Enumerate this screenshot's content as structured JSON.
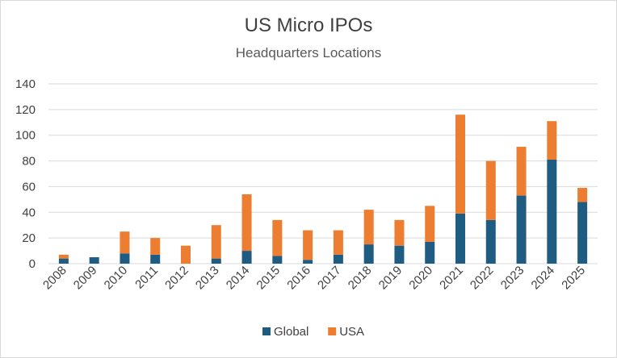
{
  "chart_data": {
    "type": "bar",
    "stacked": true,
    "title": "US Micro IPOs",
    "subtitle": "Headquarters Locations",
    "xlabel": "",
    "ylabel": "",
    "ylim": [
      0,
      140
    ],
    "yticks": [
      0,
      20,
      40,
      60,
      80,
      100,
      120,
      140
    ],
    "grid": true,
    "legend_position": "bottom",
    "categories": [
      "2008",
      "2009",
      "2010",
      "2011",
      "2012",
      "2013",
      "2014",
      "2015",
      "2016",
      "2017",
      "2018",
      "2019",
      "2020",
      "2021",
      "2022",
      "2023",
      "2024",
      "2025"
    ],
    "series": [
      {
        "name": "Global",
        "color": "#1f5c82",
        "values": [
          4,
          5,
          8,
          7,
          0,
          4,
          10,
          6,
          3,
          7,
          15,
          14,
          17,
          39,
          34,
          53,
          81,
          48
        ]
      },
      {
        "name": "USA",
        "color": "#ed7d31",
        "values": [
          3,
          0,
          17,
          13,
          14,
          26,
          44,
          28,
          23,
          19,
          27,
          20,
          28,
          77,
          46,
          38,
          30,
          11
        ]
      }
    ]
  }
}
